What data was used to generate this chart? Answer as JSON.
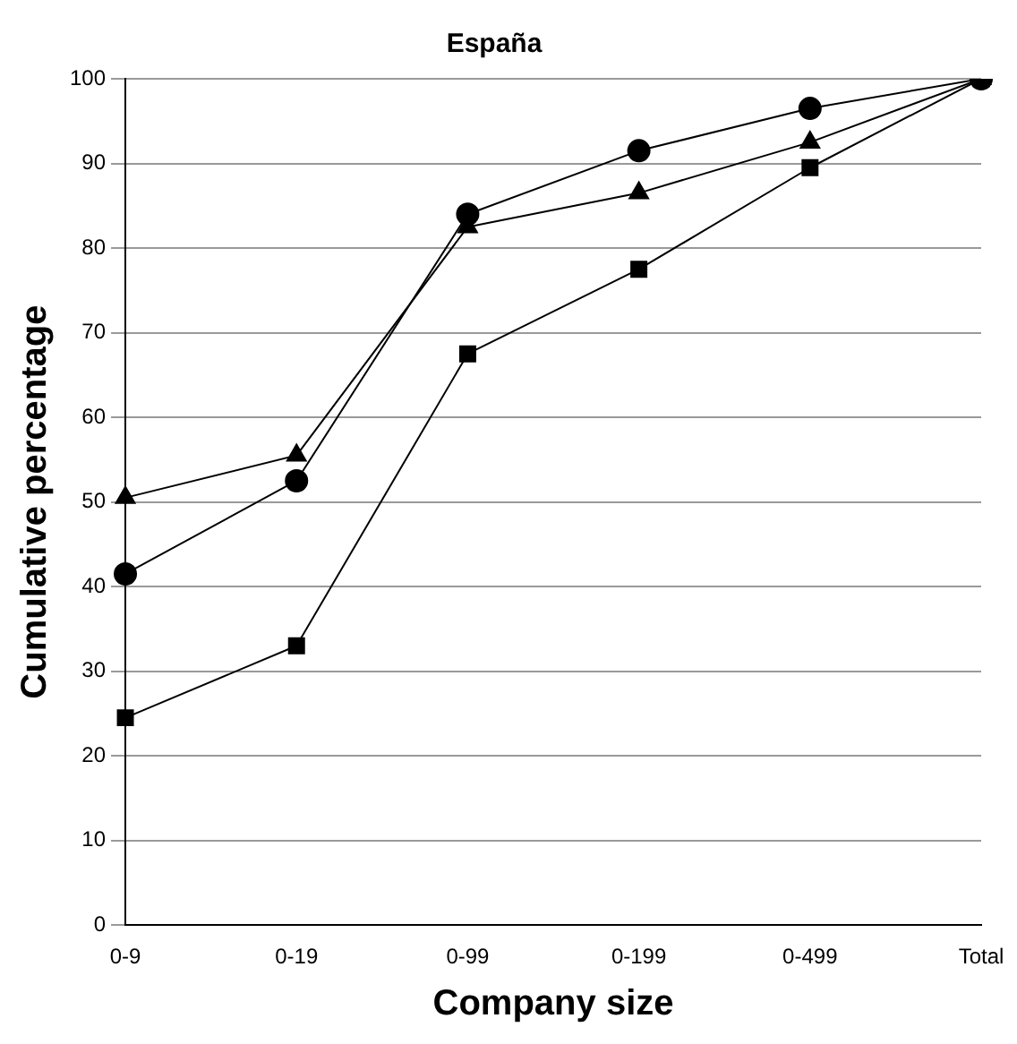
{
  "chart_data": {
    "type": "line",
    "title": "España",
    "xlabel": "Company size",
    "ylabel": "Cumulative percentage",
    "categories": [
      "0-9",
      "0-19",
      "0-99",
      "0-199",
      "0-499",
      "Total"
    ],
    "series": [
      {
        "color": "#000000",
        "marker": "circle",
        "values": [
          41.5,
          52.5,
          84,
          91.5,
          96.5,
          100
        ]
      },
      {
        "color": "#000000",
        "marker": "triangle",
        "values": [
          50.5,
          55.5,
          82.5,
          86.5,
          92.5,
          100
        ]
      },
      {
        "color": "#000000",
        "marker": "square",
        "values": [
          24.5,
          33,
          67.5,
          77.5,
          89.5,
          100
        ]
      }
    ],
    "ylim": [
      0,
      100
    ],
    "yticks": [
      0,
      10,
      20,
      30,
      40,
      50,
      60,
      70,
      80,
      90,
      100
    ],
    "grid": "y",
    "legend": false,
    "line_style": "solid"
  }
}
